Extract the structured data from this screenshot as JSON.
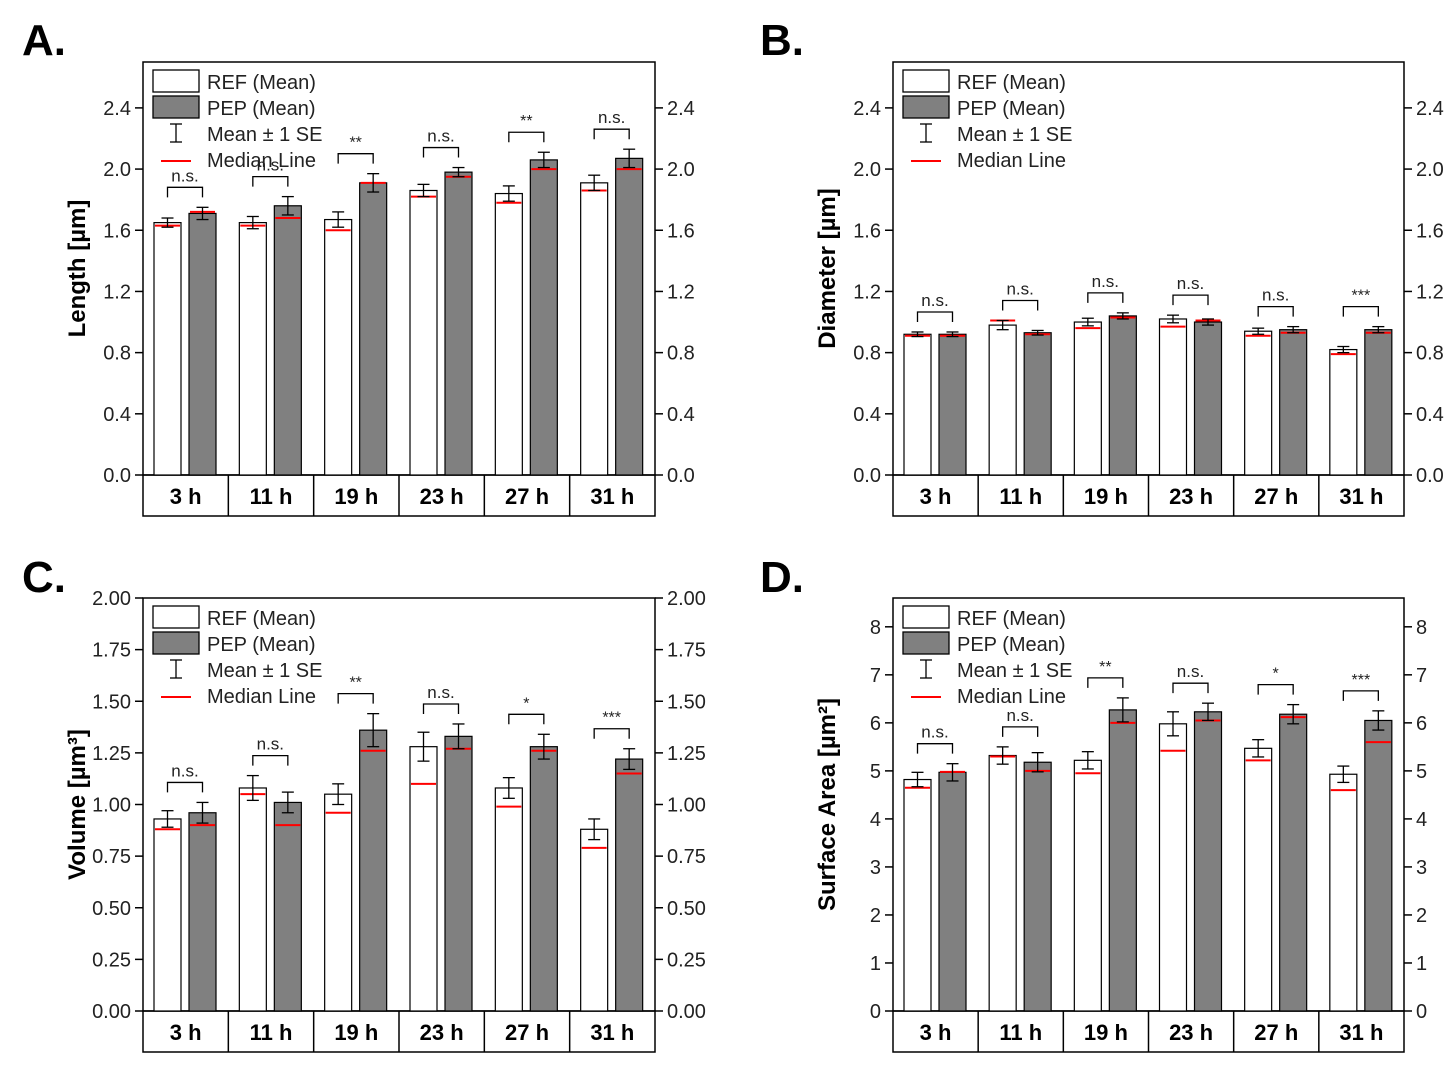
{
  "figure": {
    "legend": {
      "ref": "REF (Mean)",
      "pep": "PEP (Mean)",
      "se": "Mean ± 1 SE",
      "median": "Median Line"
    },
    "colors": {
      "ref_fill": "#ffffff",
      "pep_fill": "#808080",
      "median": "#ff0000",
      "axis": "#000000"
    }
  },
  "chart_data": [
    {
      "panel": "A.",
      "type": "bar",
      "ylabel": "Length [µm]",
      "categories": [
        "3 h",
        "11 h",
        "19 h",
        "23 h",
        "27 h",
        "31 h"
      ],
      "ylim": [
        0,
        2.7
      ],
      "yticks": [
        0.0,
        0.4,
        0.8,
        1.2,
        1.6,
        2.0,
        2.4
      ],
      "tick_decimals": 1,
      "series": [
        {
          "name": "REF (Mean)",
          "values": [
            1.65,
            1.65,
            1.67,
            1.86,
            1.84,
            1.91
          ],
          "se": [
            0.03,
            0.04,
            0.05,
            0.04,
            0.05,
            0.05
          ],
          "median": [
            1.63,
            1.63,
            1.6,
            1.82,
            1.78,
            1.86
          ]
        },
        {
          "name": "PEP (Mean)",
          "values": [
            1.71,
            1.76,
            1.91,
            1.98,
            2.06,
            2.07
          ],
          "se": [
            0.04,
            0.06,
            0.06,
            0.03,
            0.05,
            0.06
          ],
          "median": [
            1.72,
            1.68,
            1.91,
            1.95,
            2.0,
            2.0
          ]
        }
      ],
      "significance": [
        "n.s.",
        "n.s.",
        "**",
        "n.s.",
        "**",
        "n.s."
      ]
    },
    {
      "panel": "B.",
      "type": "bar",
      "ylabel": "Diameter [µm]",
      "categories": [
        "3 h",
        "11 h",
        "19 h",
        "23 h",
        "27 h",
        "31 h"
      ],
      "ylim": [
        0,
        2.7
      ],
      "yticks": [
        0.0,
        0.4,
        0.8,
        1.2,
        1.6,
        2.0,
        2.4
      ],
      "tick_decimals": 1,
      "series": [
        {
          "name": "REF (Mean)",
          "values": [
            0.92,
            0.98,
            1.0,
            1.02,
            0.94,
            0.82
          ],
          "se": [
            0.015,
            0.03,
            0.025,
            0.025,
            0.02,
            0.02
          ],
          "median": [
            0.91,
            1.01,
            0.96,
            0.97,
            0.91,
            0.79
          ]
        },
        {
          "name": "PEP (Mean)",
          "values": [
            0.92,
            0.93,
            1.04,
            1.0,
            0.95,
            0.95
          ],
          "se": [
            0.015,
            0.015,
            0.02,
            0.02,
            0.02,
            0.02
          ],
          "median": [
            0.91,
            0.92,
            1.03,
            1.01,
            0.93,
            0.93
          ]
        }
      ],
      "significance": [
        "n.s.",
        "n.s.",
        "n.s.",
        "n.s.",
        "n.s.",
        "***"
      ]
    },
    {
      "panel": "C.",
      "type": "bar",
      "ylabel": "Volume [µm³]",
      "categories": [
        "3 h",
        "11 h",
        "19 h",
        "23 h",
        "27 h",
        "31 h"
      ],
      "ylim": [
        0,
        2.0
      ],
      "yticks": [
        0.0,
        0.25,
        0.5,
        0.75,
        1.0,
        1.25,
        1.5,
        1.75,
        2.0
      ],
      "tick_decimals": 2,
      "series": [
        {
          "name": "REF (Mean)",
          "values": [
            0.93,
            1.08,
            1.05,
            1.28,
            1.08,
            0.88
          ],
          "se": [
            0.04,
            0.06,
            0.05,
            0.07,
            0.05,
            0.05
          ],
          "median": [
            0.88,
            1.05,
            0.96,
            1.1,
            0.99,
            0.79
          ]
        },
        {
          "name": "PEP (Mean)",
          "values": [
            0.96,
            1.01,
            1.36,
            1.33,
            1.28,
            1.22
          ],
          "se": [
            0.05,
            0.05,
            0.08,
            0.06,
            0.06,
            0.05
          ],
          "median": [
            0.9,
            0.9,
            1.26,
            1.27,
            1.26,
            1.15
          ]
        }
      ],
      "significance": [
        "n.s.",
        "n.s.",
        "**",
        "n.s.",
        "*",
        "***"
      ]
    },
    {
      "panel": "D.",
      "type": "bar",
      "ylabel": "Surface Area [µm²]",
      "categories": [
        "3 h",
        "11 h",
        "19 h",
        "23 h",
        "27 h",
        "31 h"
      ],
      "ylim": [
        0,
        8.6
      ],
      "yticks": [
        0,
        1,
        2,
        3,
        4,
        5,
        6,
        7,
        8
      ],
      "tick_decimals": 0,
      "series": [
        {
          "name": "REF (Mean)",
          "values": [
            4.82,
            5.32,
            5.22,
            5.98,
            5.47,
            4.93
          ],
          "se": [
            0.15,
            0.18,
            0.18,
            0.25,
            0.18,
            0.17
          ],
          "median": [
            4.65,
            5.3,
            4.95,
            5.42,
            5.22,
            4.6
          ]
        },
        {
          "name": "PEP (Mean)",
          "values": [
            4.97,
            5.18,
            6.27,
            6.23,
            6.18,
            6.05
          ],
          "se": [
            0.18,
            0.2,
            0.25,
            0.18,
            0.2,
            0.2
          ],
          "median": [
            4.98,
            5.0,
            6.0,
            6.05,
            6.12,
            5.6
          ]
        }
      ],
      "significance": [
        "n.s.",
        "n.s.",
        "**",
        "n.s.",
        "*",
        "***"
      ]
    }
  ]
}
